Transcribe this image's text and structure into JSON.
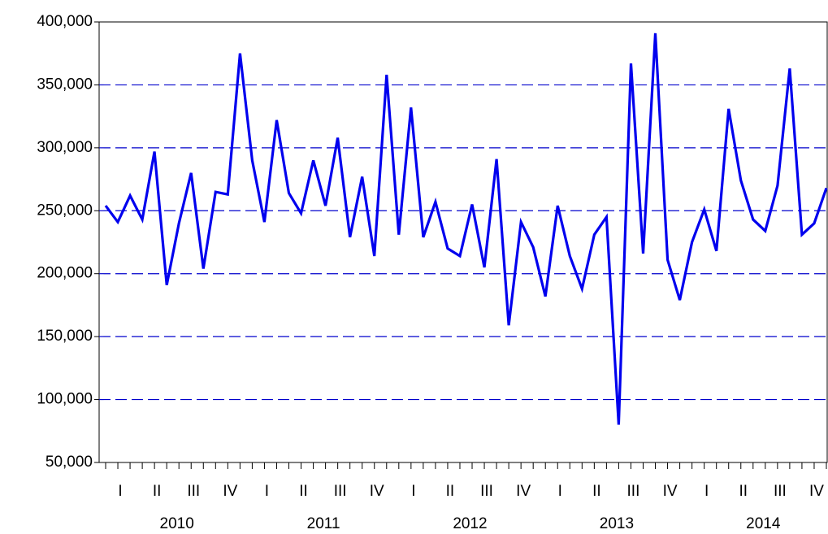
{
  "chart_data": {
    "type": "line",
    "series": [
      {
        "color": "#0000ee",
        "values": [
          254000,
          241000,
          262000,
          243000,
          297000,
          191000,
          240000,
          280000,
          204000,
          265000,
          263000,
          375000,
          290000,
          241000,
          322000,
          264000,
          248000,
          290000,
          254000,
          308000,
          229000,
          277000,
          214000,
          358000,
          231000,
          332000,
          229000,
          257000,
          220000,
          214000,
          255000,
          205000,
          291000,
          159000,
          241000,
          221000,
          182000,
          254000,
          214000,
          188000,
          231000,
          245000,
          80000,
          367000,
          216000,
          391000,
          211000,
          179000,
          225000,
          251000,
          218000,
          331000,
          274000,
          243000,
          234000,
          270000,
          363000,
          231000,
          240000,
          268000
        ]
      }
    ],
    "quarter_labels": [
      "I",
      "II",
      "III",
      "IV",
      "I",
      "II",
      "III",
      "IV",
      "I",
      "II",
      "III",
      "IV",
      "I",
      "II",
      "III",
      "IV",
      "I",
      "II",
      "III",
      "IV"
    ],
    "year_labels": [
      "2010",
      "2011",
      "2012",
      "2013",
      "2014"
    ],
    "ylim": [
      50000,
      400000
    ],
    "yticks": [
      {
        "value": 50000,
        "label": "50,000"
      },
      {
        "value": 100000,
        "label": "100,000"
      },
      {
        "value": 150000,
        "label": "150,000"
      },
      {
        "value": 200000,
        "label": "200,000"
      },
      {
        "value": 250000,
        "label": "250,000"
      },
      {
        "value": 300000,
        "label": "300,000"
      },
      {
        "value": 350000,
        "label": "350,000"
      },
      {
        "value": 400000,
        "label": "400,000"
      }
    ],
    "grid": true
  }
}
